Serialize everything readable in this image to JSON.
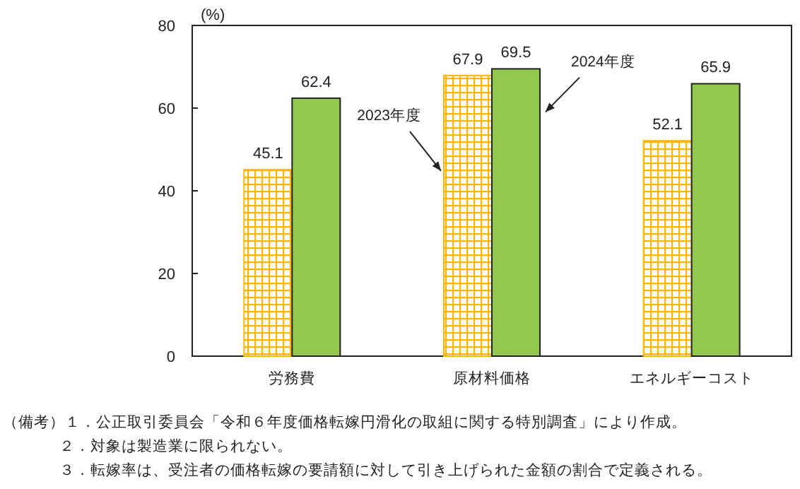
{
  "chart_data": {
    "type": "bar",
    "ylabel": "(%)",
    "categories": [
      "労務費",
      "原材料価格",
      "エネルギーコスト"
    ],
    "series": [
      {
        "name": "2023年度",
        "color": "#ffb400",
        "values": [
          45.1,
          67.9,
          52.1
        ]
      },
      {
        "name": "2024年度",
        "color": "#92c84f",
        "values": [
          62.4,
          69.5,
          65.9
        ]
      }
    ],
    "data_labels": true,
    "ylim": [
      0,
      80
    ],
    "yticks": [
      0,
      20,
      40,
      60,
      80
    ],
    "annotations": [
      "（備考）１．公正取引委員会「令和６年度価格転嫁円滑化の取組に関する特別調査」により作成。",
      "２．対象は製造業に限られない。",
      "３．転嫁率は、受注者の価格転嫁の要請額に対して引き上げられた金額の割合で定義される。"
    ]
  }
}
